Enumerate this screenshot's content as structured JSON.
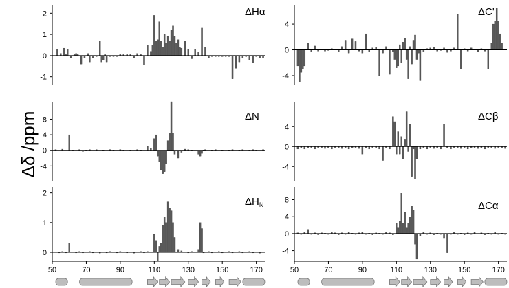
{
  "figure": {
    "y_axis_label": "Δδ /ppm"
  },
  "chart_data": [
    {
      "type": "bar",
      "title": "ΔHα",
      "title_base": "ΔH",
      "title_sub": "α",
      "xlim": [
        50,
        175
      ],
      "ylim": [
        -1.4,
        2.4
      ],
      "xticks": [],
      "yticks": [
        -1,
        0,
        1,
        2
      ],
      "x": [
        53,
        55,
        57,
        58,
        59,
        61,
        63,
        64,
        65,
        67,
        69,
        71,
        72,
        74,
        76,
        78,
        79,
        80,
        81,
        82,
        84,
        86,
        88,
        90,
        92,
        94,
        96,
        98,
        100,
        102,
        104,
        106,
        108,
        109,
        110,
        111,
        112,
        113,
        114,
        115,
        116,
        117,
        118,
        119,
        120,
        121,
        122,
        123,
        124,
        125,
        126,
        128,
        130,
        132,
        134,
        136,
        138,
        140,
        142,
        144,
        146,
        148,
        150,
        152,
        154,
        156,
        158,
        160,
        162,
        164,
        166,
        168,
        170,
        172,
        174
      ],
      "values": [
        0.3,
        0.1,
        0.35,
        0.05,
        0.3,
        -0.1,
        0.05,
        0.1,
        0.05,
        -0.4,
        -0.1,
        0.1,
        -0.3,
        -0.1,
        -0.05,
        0.7,
        -0.3,
        -0.2,
        0.05,
        -0.3,
        -0.05,
        -0.05,
        -0.05,
        0.05,
        0.05,
        0.05,
        0.05,
        -0.1,
        0.1,
        0.05,
        -0.45,
        0.5,
        0.2,
        0.5,
        1.9,
        0.7,
        0.75,
        1.6,
        0.7,
        0.4,
        1.0,
        0.6,
        0.9,
        0.7,
        1.2,
        1.4,
        0.9,
        0.6,
        0.75,
        0.4,
        0.35,
        0.7,
        0.3,
        -0.15,
        0.3,
        0.15,
        1.3,
        0.4,
        -0.1,
        -0.05,
        -0.05,
        -0.05,
        -0.05,
        -0.05,
        -0.05,
        -1.1,
        -0.6,
        -0.3,
        -0.1,
        -0.05,
        -0.2,
        -0.35,
        -0.05,
        -0.1,
        -0.1
      ]
    },
    {
      "type": "bar",
      "title": "ΔC'",
      "title_base": "ΔC'",
      "title_sub": "",
      "xlim": [
        50,
        175
      ],
      "ylim": [
        -5.5,
        7.0
      ],
      "xticks": [],
      "yticks": [
        -4,
        0,
        4
      ],
      "x": [
        52,
        53,
        54,
        55,
        56,
        58,
        60,
        62,
        64,
        66,
        68,
        70,
        72,
        74,
        76,
        78,
        80,
        82,
        84,
        86,
        88,
        90,
        92,
        94,
        96,
        98,
        100,
        102,
        104,
        106,
        108,
        109,
        110,
        111,
        112,
        113,
        114,
        115,
        116,
        117,
        118,
        119,
        120,
        121,
        122,
        123,
        124,
        126,
        128,
        130,
        132,
        134,
        136,
        138,
        140,
        142,
        144,
        146,
        148,
        150,
        152,
        154,
        156,
        158,
        160,
        162,
        164,
        166,
        167,
        168,
        169,
        170,
        171,
        172
      ],
      "values": [
        -2.5,
        -5.0,
        -3.5,
        -3.0,
        -2.5,
        1.0,
        -0.3,
        0.6,
        -0.2,
        0.1,
        -0.2,
        -0.1,
        0.2,
        0.1,
        -0.3,
        0.5,
        1.5,
        -0.5,
        1.7,
        1.3,
        -0.2,
        -0.5,
        2.5,
        -0.3,
        0.3,
        0.4,
        -4.0,
        -0.5,
        0.5,
        -3.8,
        -0.3,
        -1.5,
        -2.8,
        -2.5,
        0.8,
        -2.0,
        1.2,
        1.8,
        -1.5,
        -4.5,
        0.5,
        -2.2,
        1.5,
        2.3,
        -1.5,
        -0.5,
        -4.8,
        -0.3,
        0.2,
        0.3,
        0.4,
        -0.2,
        -0.1,
        0.3,
        -0.4,
        -0.2,
        0.3,
        5.5,
        -3.0,
        0.2,
        -0.2,
        0.3,
        0.1,
        -0.3,
        0.2,
        -0.2,
        -3.0,
        1.0,
        4.0,
        4.5,
        6.5,
        4.5,
        2.5,
        1.0
      ]
    },
    {
      "type": "bar",
      "title": "ΔN",
      "title_base": "ΔN",
      "title_sub": "",
      "xlim": [
        50,
        175
      ],
      "ylim": [
        -8.0,
        12.5
      ],
      "xticks": [],
      "yticks": [
        -4,
        0,
        4,
        8
      ],
      "x": [
        52,
        54,
        56,
        58,
        60,
        62,
        64,
        66,
        68,
        70,
        72,
        74,
        76,
        78,
        80,
        82,
        84,
        86,
        88,
        90,
        92,
        94,
        96,
        98,
        100,
        102,
        104,
        106,
        108,
        110,
        111,
        112,
        113,
        114,
        115,
        116,
        117,
        118,
        119,
        120,
        121,
        122,
        124,
        126,
        128,
        130,
        132,
        134,
        136,
        137,
        138,
        139,
        140,
        142,
        144,
        146,
        148,
        150,
        152,
        154,
        156,
        158,
        160,
        162,
        164,
        166,
        168,
        170,
        172,
        174
      ],
      "values": [
        0.2,
        -0.2,
        0.3,
        -0.1,
        4.0,
        0.1,
        -0.2,
        0.2,
        -0.3,
        0.1,
        0.2,
        -0.1,
        0.2,
        -0.2,
        0.1,
        -0.1,
        0.2,
        0.1,
        -0.1,
        0.2,
        0.1,
        -0.2,
        0.1,
        -0.1,
        0.2,
        0.1,
        -0.2,
        1.0,
        0.5,
        3.0,
        4.0,
        -1.5,
        -3.0,
        -5.0,
        -6.0,
        -5.5,
        -3.5,
        2.5,
        4.5,
        12.5,
        4.5,
        -1.0,
        -2.0,
        -0.5,
        0.3,
        0.2,
        0.1,
        -0.2,
        -1.0,
        -1.5,
        -0.8,
        0.1,
        0.2,
        -0.1,
        0.1,
        0.2,
        -0.1,
        0.1,
        -0.2,
        0.1,
        0.2,
        -0.1,
        0.1,
        0.2,
        -0.1,
        0.1,
        0.2,
        0.1,
        -0.2,
        0.2
      ]
    },
    {
      "type": "bar",
      "title": "ΔCβ",
      "title_base": "ΔC",
      "title_sub": "β",
      "xlim": [
        50,
        175
      ],
      "ylim": [
        -7.0,
        9.0
      ],
      "xticks": [],
      "yticks": [
        -4,
        0,
        4
      ],
      "x": [
        52,
        54,
        56,
        58,
        60,
        62,
        64,
        66,
        68,
        70,
        72,
        74,
        76,
        78,
        80,
        82,
        84,
        86,
        88,
        90,
        92,
        94,
        96,
        98,
        100,
        102,
        104,
        106,
        108,
        109,
        110,
        111,
        112,
        113,
        114,
        115,
        116,
        117,
        118,
        119,
        120,
        121,
        122,
        124,
        126,
        128,
        130,
        132,
        134,
        136,
        138,
        140,
        142,
        144,
        146,
        148,
        150,
        152,
        154,
        156,
        158,
        160,
        162,
        164,
        166,
        168,
        170,
        172,
        174
      ],
      "values": [
        -0.5,
        -0.3,
        -0.5,
        -0.3,
        -0.2,
        -0.5,
        -0.3,
        -0.2,
        -0.4,
        -0.3,
        -0.5,
        -0.2,
        -0.3,
        -0.4,
        -0.2,
        -0.5,
        -0.3,
        -0.2,
        -0.4,
        -1.5,
        -0.3,
        -0.5,
        -0.2,
        -0.3,
        -0.5,
        -2.8,
        -0.3,
        -0.5,
        6.0,
        5.0,
        -1.5,
        3.0,
        -1.5,
        2.0,
        -2.5,
        1.5,
        7.0,
        -1.0,
        4.5,
        -6.0,
        -0.5,
        -6.5,
        -2.5,
        -0.5,
        -0.3,
        -0.5,
        -0.2,
        -0.4,
        -0.3,
        -0.5,
        4.5,
        -0.3,
        -0.5,
        -0.2,
        -0.3,
        -0.4,
        -0.2,
        -0.5,
        -0.3,
        -0.2,
        -0.4,
        -0.3,
        -0.5,
        -0.2,
        -0.3,
        -0.4,
        -0.2,
        -0.3,
        -0.4
      ]
    },
    {
      "type": "bar",
      "title": "ΔHN",
      "title_base": "ΔH",
      "title_sub": "N",
      "xlim": [
        50,
        175
      ],
      "ylim": [
        -0.3,
        2.2
      ],
      "xticks": [
        50,
        70,
        90,
        110,
        130,
        150,
        170
      ],
      "yticks": [
        0,
        1,
        2
      ],
      "x": [
        52,
        54,
        56,
        58,
        60,
        62,
        64,
        66,
        68,
        70,
        72,
        74,
        76,
        78,
        80,
        82,
        84,
        86,
        88,
        90,
        92,
        94,
        96,
        98,
        100,
        102,
        104,
        106,
        108,
        110,
        111,
        112,
        113,
        114,
        115,
        116,
        117,
        118,
        119,
        120,
        121,
        122,
        124,
        126,
        128,
        130,
        132,
        134,
        136,
        137,
        138,
        139,
        140,
        142,
        144,
        146,
        148,
        150,
        152,
        154,
        156,
        158,
        160,
        162,
        164,
        166,
        168,
        170,
        172,
        174
      ],
      "values": [
        0.02,
        -0.02,
        0.03,
        -0.02,
        0.3,
        0.02,
        -0.02,
        0.03,
        -0.02,
        0.02,
        0.03,
        -0.02,
        0.02,
        -0.03,
        0.02,
        -0.02,
        0.03,
        0.02,
        -0.02,
        0.03,
        0.02,
        -0.02,
        0.02,
        -0.03,
        0.02,
        0.03,
        -0.02,
        0.03,
        0.02,
        0.6,
        0.4,
        -0.3,
        0.2,
        0.3,
        0.9,
        1.2,
        1.0,
        1.7,
        1.5,
        1.4,
        1.0,
        0.5,
        0.1,
        0.05,
        0.02,
        -0.02,
        0.03,
        0.02,
        0.1,
        1.0,
        0.8,
        -0.02,
        0.02,
        0.03,
        -0.02,
        0.02,
        0.03,
        -0.02,
        0.02,
        0.03,
        -0.02,
        0.02,
        0.03,
        -0.02,
        0.02,
        0.03,
        -0.02,
        0.02,
        -0.03,
        0.02
      ]
    },
    {
      "type": "bar",
      "title": "ΔCα",
      "title_base": "ΔC",
      "title_sub": "α",
      "xlim": [
        50,
        175
      ],
      "ylim": [
        -6.5,
        11.0
      ],
      "xticks": [
        50,
        70,
        90,
        110,
        130,
        150,
        170
      ],
      "yticks": [
        -4,
        0,
        4,
        8
      ],
      "x": [
        52,
        54,
        56,
        58,
        60,
        62,
        64,
        66,
        68,
        70,
        72,
        74,
        76,
        78,
        80,
        82,
        84,
        86,
        88,
        90,
        92,
        94,
        96,
        98,
        100,
        102,
        104,
        106,
        108,
        110,
        111,
        112,
        113,
        114,
        115,
        116,
        117,
        118,
        119,
        120,
        121,
        122,
        124,
        126,
        128,
        130,
        132,
        134,
        136,
        138,
        140,
        142,
        144,
        146,
        148,
        150,
        152,
        154,
        156,
        158,
        160,
        162,
        164,
        166,
        168,
        170,
        172,
        174
      ],
      "values": [
        0.2,
        -0.2,
        0.3,
        1.0,
        -0.2,
        0.2,
        -0.3,
        0.2,
        0.1,
        -0.2,
        0.3,
        0.2,
        -0.3,
        0.2,
        -0.2,
        0.3,
        0.1,
        -0.2,
        0.2,
        0.3,
        -0.2,
        0.1,
        -0.3,
        0.2,
        0.1,
        -0.2,
        0.3,
        0.2,
        -0.3,
        2.5,
        1.5,
        3.0,
        9.5,
        2.5,
        5.0,
        1.5,
        2.5,
        4.0,
        6.5,
        5.5,
        -2.5,
        -6.0,
        -0.5,
        0.3,
        -0.2,
        0.2,
        -0.3,
        0.1,
        -0.2,
        -1.0,
        -4.5,
        -0.2,
        0.3,
        -0.2,
        0.1,
        -0.3,
        0.2,
        -0.2,
        0.3,
        -0.1,
        0.2,
        -0.3,
        0.1,
        -0.2,
        0.3,
        -0.2,
        0.1,
        -0.2
      ]
    }
  ],
  "topology": [
    {
      "type": "cyl",
      "start": 52,
      "end": 59
    },
    {
      "type": "cyl",
      "start": 66,
      "end": 97
    },
    {
      "type": "arrow",
      "start": 106,
      "end": 112
    },
    {
      "type": "arrow",
      "start": 113,
      "end": 119
    },
    {
      "type": "arrow",
      "start": 120,
      "end": 128
    },
    {
      "type": "arrow",
      "start": 130,
      "end": 136
    },
    {
      "type": "arrow",
      "start": 138,
      "end": 143
    },
    {
      "type": "arrow",
      "start": 146,
      "end": 151
    },
    {
      "type": "arrow",
      "start": 154,
      "end": 161
    },
    {
      "type": "cyl",
      "start": 162,
      "end": 175
    }
  ]
}
